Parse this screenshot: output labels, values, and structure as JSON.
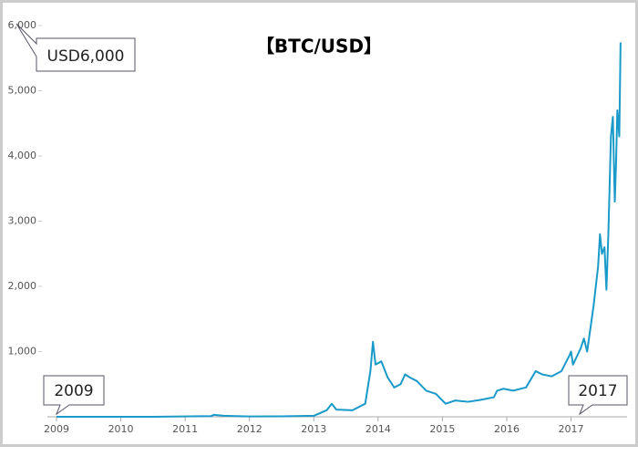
{
  "chart_data": {
    "type": "line",
    "title": "【BTC/USD】",
    "annotations": [
      "USD6,000",
      "2009",
      "2017"
    ],
    "x": [
      2009.0,
      2010.5,
      2011.4,
      2011.45,
      2011.6,
      2012.0,
      2012.5,
      2013.0,
      2013.2,
      2013.28,
      2013.35,
      2013.6,
      2013.8,
      2013.88,
      2013.92,
      2013.96,
      2014.05,
      2014.15,
      2014.25,
      2014.35,
      2014.42,
      2014.5,
      2014.6,
      2014.75,
      2014.9,
      2015.0,
      2015.05,
      2015.2,
      2015.4,
      2015.6,
      2015.8,
      2015.85,
      2015.95,
      2016.1,
      2016.3,
      2016.45,
      2016.55,
      2016.7,
      2016.85,
      2016.98,
      2017.0,
      2017.03,
      2017.15,
      2017.2,
      2017.25,
      2017.35,
      2017.42,
      2017.45,
      2017.48,
      2017.52,
      2017.55,
      2017.58,
      2017.62,
      2017.65,
      2017.68,
      2017.7,
      2017.72,
      2017.75,
      2017.77
    ],
    "values": [
      0,
      0,
      10,
      30,
      15,
      5,
      7,
      15,
      100,
      200,
      110,
      100,
      200,
      700,
      1150,
      800,
      850,
      600,
      450,
      500,
      650,
      600,
      550,
      400,
      350,
      250,
      200,
      250,
      230,
      260,
      300,
      400,
      430,
      400,
      450,
      700,
      650,
      620,
      700,
      950,
      1000,
      800,
      1050,
      1200,
      1000,
      1700,
      2300,
      2800,
      2500,
      2600,
      1950,
      2800,
      4300,
      4600,
      3300,
      3900,
      4700,
      4300,
      5740
    ],
    "color": "#1a9ac9",
    "xlim": [
      2009,
      2017.8
    ],
    "xticks": [
      2009,
      2010,
      2011,
      2012,
      2013,
      2014,
      2015,
      2016,
      2017
    ],
    "ylim": [
      0,
      6000
    ],
    "yticks": [
      {
        "value": 1000,
        "label": "1,000"
      },
      {
        "value": 2000,
        "label": "2,000"
      },
      {
        "value": 3000,
        "label": "3,000"
      },
      {
        "value": 4000,
        "label": "4,000"
      },
      {
        "value": 5000,
        "label": "5,000"
      },
      {
        "value": 6000,
        "label": "6,000"
      }
    ]
  }
}
